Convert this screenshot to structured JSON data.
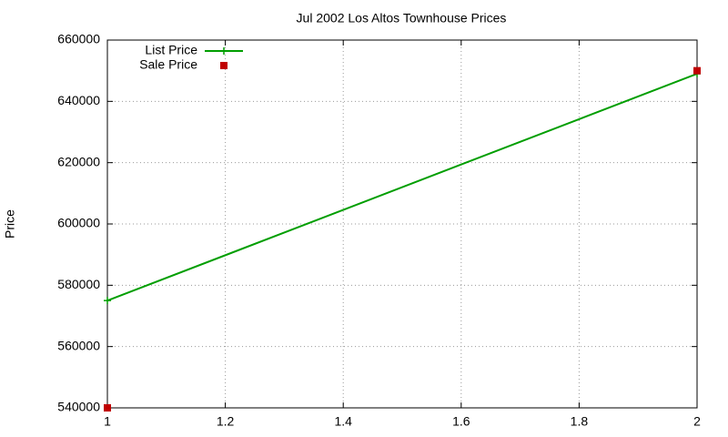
{
  "chart_data": {
    "type": "line",
    "title": "Jul 2002 Los Altos Townhouse Prices",
    "ylabel": "Price",
    "x": [
      1,
      2
    ],
    "series": [
      {
        "name": "List Price",
        "color": "#009e00",
        "style": "linespoints",
        "values": [
          575000,
          649000
        ]
      },
      {
        "name": "Sale Price",
        "color": "#c00000",
        "style": "points",
        "values": [
          540000,
          650000
        ]
      }
    ],
    "xlim": [
      1,
      2
    ],
    "xticks": [
      1,
      1.2,
      1.4,
      1.6,
      1.8,
      2
    ],
    "ylim": [
      540000,
      660000
    ],
    "yticks": [
      540000,
      560000,
      580000,
      600000,
      620000,
      640000,
      660000
    ],
    "grid": true,
    "legend": "top-left"
  }
}
